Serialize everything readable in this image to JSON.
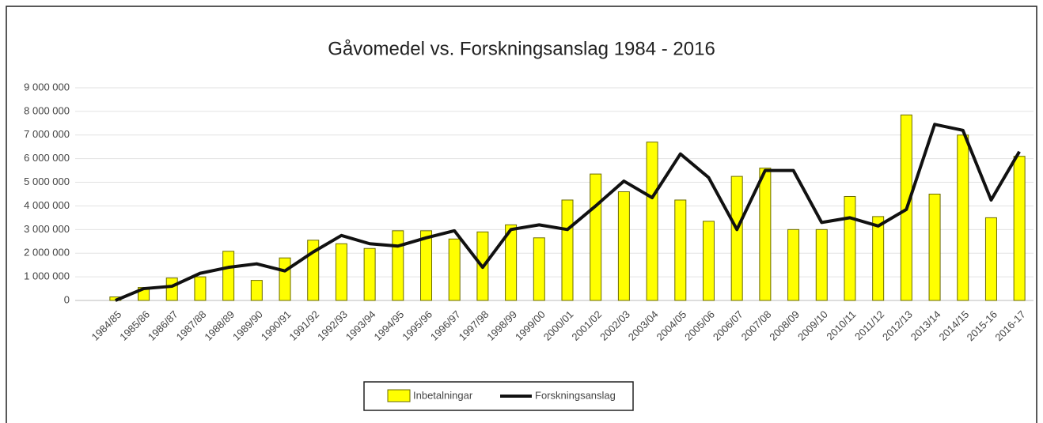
{
  "chart_data": {
    "type": "bar-line",
    "title": "Gåvomedel vs. Forskningsanslag 1984 - 2016",
    "categories": [
      "1984/85",
      "1985/86",
      "1986/87",
      "1987/88",
      "1988/89",
      "1989/90",
      "1990/91",
      "1991/92",
      "1992/93",
      "1993/94",
      "1994/95",
      "1995/96",
      "1996/97",
      "1997/98",
      "1998/99",
      "1999/00",
      "2000/01",
      "2001/02",
      "2002/03",
      "2003/04",
      "2004/05",
      "2005/06",
      "2006/07",
      "2007/08",
      "2008/09",
      "2009/10",
      "2010/11",
      "2011/12",
      "2012/13",
      "2013/14",
      "2014/15",
      "2015-16",
      "2016-17"
    ],
    "series": [
      {
        "name": "Inbetalningar",
        "type": "bar",
        "color": "#ffff00",
        "values": [
          150000,
          550000,
          950000,
          1000000,
          2080000,
          850000,
          1800000,
          2550000,
          2400000,
          2200000,
          2950000,
          2950000,
          2600000,
          2900000,
          3200000,
          2650000,
          4250000,
          5350000,
          4600000,
          6700000,
          4250000,
          3350000,
          5250000,
          5600000,
          3000000,
          3000000,
          4400000,
          3550000,
          7850000,
          4500000,
          7000000,
          3500000,
          6100000
        ]
      },
      {
        "name": "Forskningsanslag",
        "type": "line",
        "color": "#111111",
        "values": [
          0,
          500000,
          600000,
          1150000,
          1400000,
          1550000,
          1250000,
          2050000,
          2750000,
          2400000,
          2300000,
          2650000,
          2950000,
          1400000,
          3000000,
          3200000,
          3000000,
          4000000,
          5050000,
          4350000,
          6200000,
          5200000,
          3000000,
          5500000,
          5500000,
          3300000,
          3500000,
          3150000,
          3850000,
          7450000,
          7200000,
          4250000,
          6300000
        ]
      }
    ],
    "ylim": [
      0,
      9000000
    ],
    "yticks": [
      0,
      {
        "value": 1000000,
        "label": "1 000 000"
      },
      {
        "value": 2000000,
        "label": "2 000 000"
      },
      {
        "value": 3000000,
        "label": "3 000 000"
      },
      {
        "value": 4000000,
        "label": "4 000 000"
      },
      {
        "value": 5000000,
        "label": "5 000 000"
      },
      {
        "value": 6000000,
        "label": "6 000 000"
      },
      {
        "value": 7000000,
        "label": "7 000 000"
      },
      {
        "value": 8000000,
        "label": "8 000 000"
      },
      {
        "value": 9000000,
        "label": "9 000 000"
      }
    ],
    "grid": true,
    "legend": "bottom"
  }
}
